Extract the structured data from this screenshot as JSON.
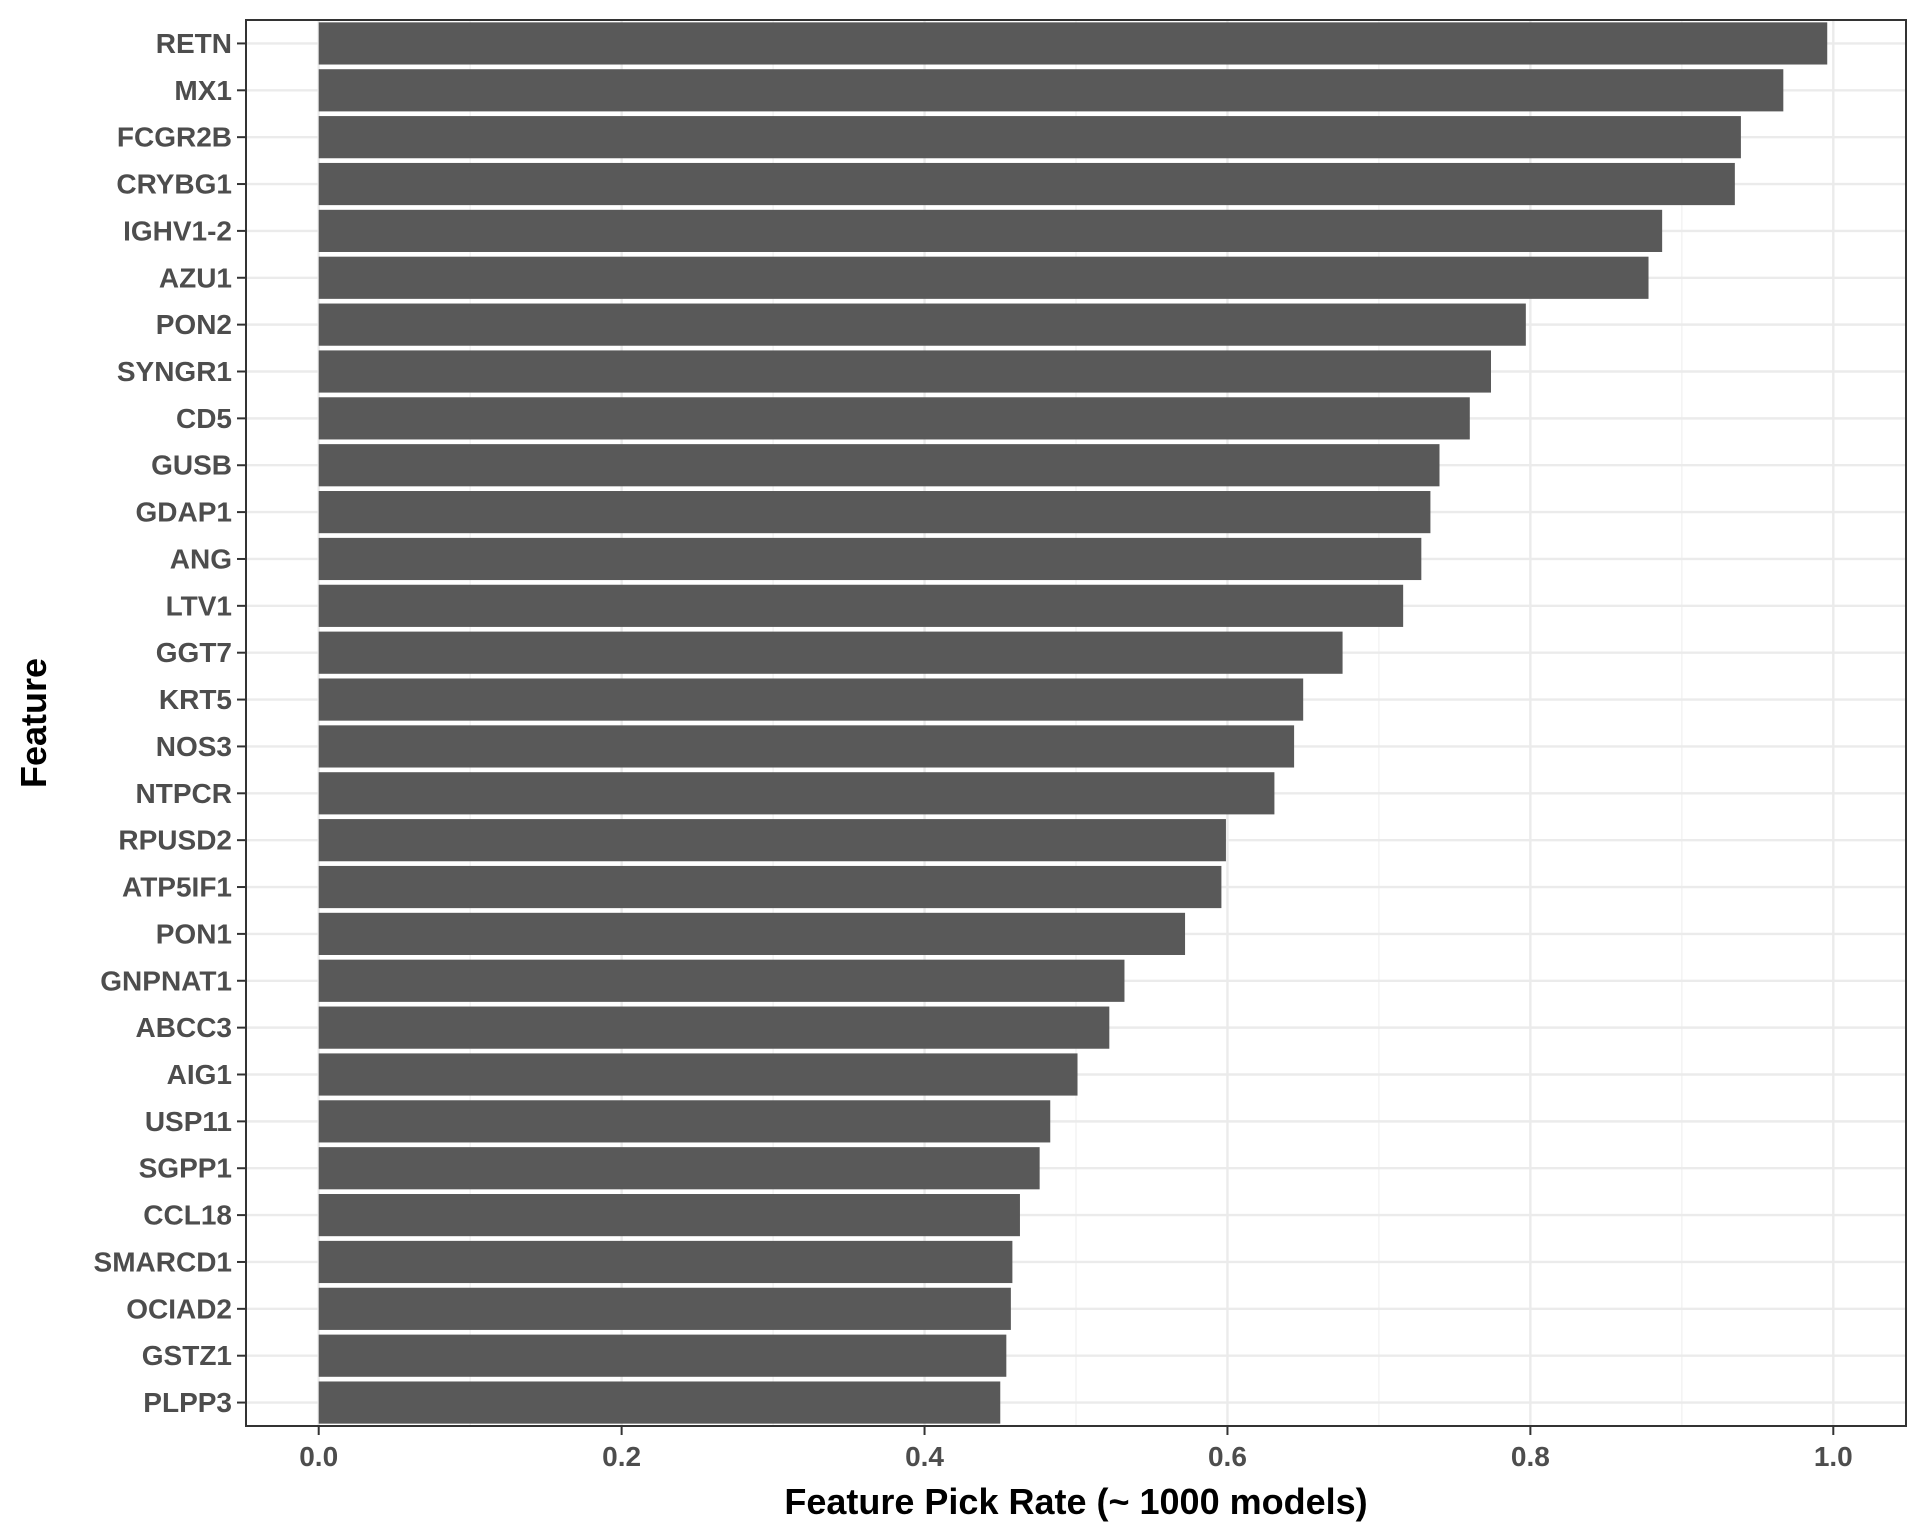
{
  "chart_data": {
    "type": "bar",
    "orientation": "horizontal",
    "title": "",
    "xlabel": "Feature Pick Rate (~ 1000 models)",
    "ylabel": "Feature",
    "xlim": [
      -0.048,
      1.048
    ],
    "x_ticks": [
      "0.0",
      "0.2",
      "0.4",
      "0.6",
      "0.8",
      "1.0"
    ],
    "grid": true,
    "legend": "none",
    "bar_color": "#595959",
    "categories": [
      "RETN",
      "MX1",
      "FCGR2B",
      "CRYBG1",
      "IGHV1-2",
      "AZU1",
      "PON2",
      "SYNGR1",
      "CD5",
      "GUSB",
      "GDAP1",
      "ANG",
      "LTV1",
      "GGT7",
      "KRT5",
      "NOS3",
      "NTPCR",
      "RPUSD2",
      "ATP5IF1",
      "PON1",
      "GNPNAT1",
      "ABCC3",
      "AIG1",
      "USP11",
      "SGPP1",
      "CCL18",
      "SMARCD1",
      "OCIAD2",
      "GSTZ1",
      "PLPP3"
    ],
    "values": [
      0.996,
      0.967,
      0.939,
      0.935,
      0.887,
      0.878,
      0.797,
      0.774,
      0.76,
      0.74,
      0.734,
      0.728,
      0.716,
      0.676,
      0.65,
      0.644,
      0.631,
      0.599,
      0.596,
      0.572,
      0.532,
      0.522,
      0.501,
      0.483,
      0.476,
      0.463,
      0.458,
      0.457,
      0.454,
      0.45
    ]
  }
}
